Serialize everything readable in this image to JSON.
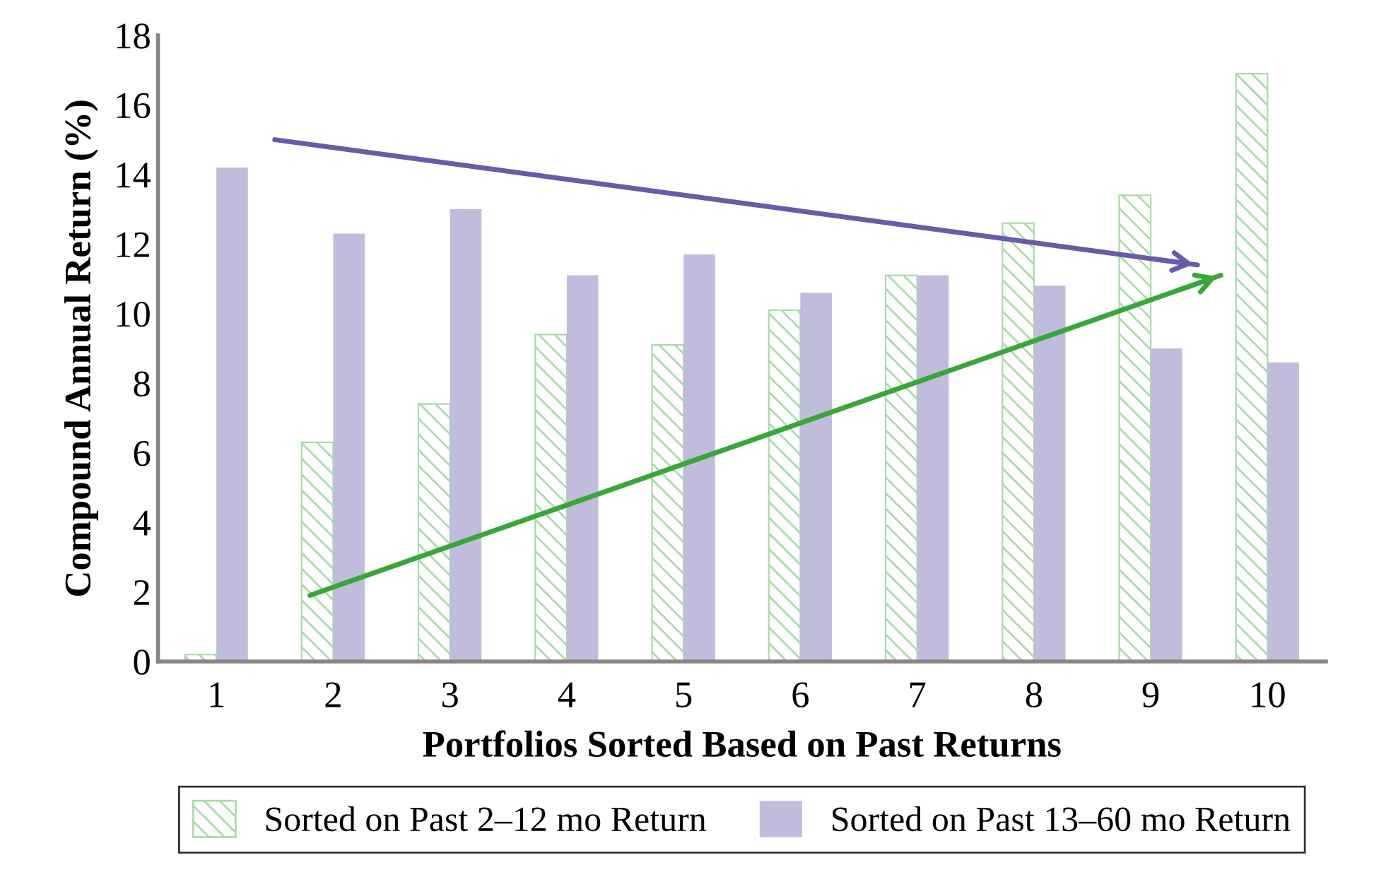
{
  "chart_data": {
    "type": "bar",
    "xlabel": "Portfolios Sorted Based on Past Returns",
    "ylabel": "Compound Annual Return (%)",
    "x": [
      1,
      2,
      3,
      4,
      5,
      6,
      7,
      8,
      9,
      10
    ],
    "series": [
      {
        "name": "Sorted on Past 2–12 mo Return",
        "color": "#a9dba9",
        "values": [
          0.2,
          6.3,
          7.4,
          9.4,
          9.1,
          10.1,
          11.1,
          12.6,
          13.4,
          16.9
        ]
      },
      {
        "name": "Sorted on Past 13–60 mo Return",
        "color": "#c0bcdc",
        "values": [
          14.2,
          12.3,
          13.0,
          11.1,
          11.7,
          10.6,
          11.1,
          10.8,
          9.0,
          8.6
        ]
      },
      {
        "type": "line",
        "color": "#6a5aaa",
        "x": [
          1.5,
          9.4
        ],
        "values": [
          15.0,
          11.4
        ]
      },
      {
        "type": "line",
        "color": "#3aa63a",
        "x": [
          1.8,
          9.6
        ],
        "values": [
          1.9,
          11.1
        ]
      }
    ],
    "xlim": [
      0.5,
      10.5
    ],
    "xticks": [
      1,
      2,
      3,
      4,
      5,
      6,
      7,
      8,
      9,
      10
    ],
    "ylim": [
      0,
      18
    ],
    "yticks": [
      0,
      2,
      4,
      6,
      8,
      10,
      12,
      14,
      16,
      18
    ],
    "grid": false,
    "legend": "bottom"
  }
}
